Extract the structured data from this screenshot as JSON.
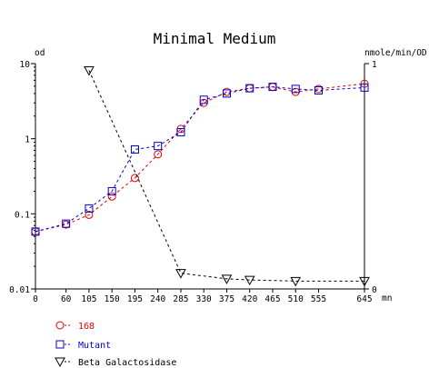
{
  "chart_data": {
    "type": "line",
    "title": "Minimal Medium",
    "x": {
      "label": "mn",
      "ticks": [
        0,
        60,
        105,
        150,
        195,
        240,
        285,
        330,
        375,
        420,
        465,
        510,
        555,
        645
      ],
      "range": [
        0,
        645
      ]
    },
    "y_left": {
      "label": "od",
      "scale": "log",
      "range": [
        0.01,
        10
      ],
      "tick_labels": [
        "10",
        "1",
        "0.1",
        "0.01"
      ]
    },
    "y_right": {
      "label": "nmole/min/OD",
      "range": [
        0,
        1
      ],
      "tick_labels": [
        "1",
        "0"
      ]
    },
    "series": [
      {
        "name": "168",
        "axis": "left",
        "color": "#e00000",
        "marker": "circle",
        "x": [
          0,
          60,
          105,
          150,
          195,
          240,
          285,
          330,
          375,
          420,
          465,
          510,
          555,
          645
        ],
        "y": [
          0.058,
          0.072,
          0.097,
          0.17,
          0.3,
          0.62,
          1.35,
          3.0,
          4.2,
          4.7,
          4.9,
          4.2,
          4.6,
          5.4
        ]
      },
      {
        "name": "Mutant",
        "axis": "left",
        "color": "#0000d0",
        "marker": "square",
        "x": [
          0,
          60,
          105,
          150,
          195,
          240,
          285,
          330,
          375,
          420,
          465,
          510,
          555,
          645
        ],
        "y": [
          0.058,
          0.074,
          0.118,
          0.2,
          0.72,
          0.8,
          1.22,
          3.3,
          4.0,
          4.7,
          4.9,
          4.6,
          4.4,
          4.8
        ]
      },
      {
        "name": "Beta Galactosidase",
        "axis": "right",
        "color": "#000000",
        "marker": "triangle-down",
        "x": [
          105,
          285,
          375,
          420,
          510,
          645
        ],
        "y": [
          0.97,
          0.07,
          0.045,
          0.04,
          0.035,
          0.035
        ]
      }
    ],
    "legend_position": "bottom-left",
    "grid": false
  }
}
